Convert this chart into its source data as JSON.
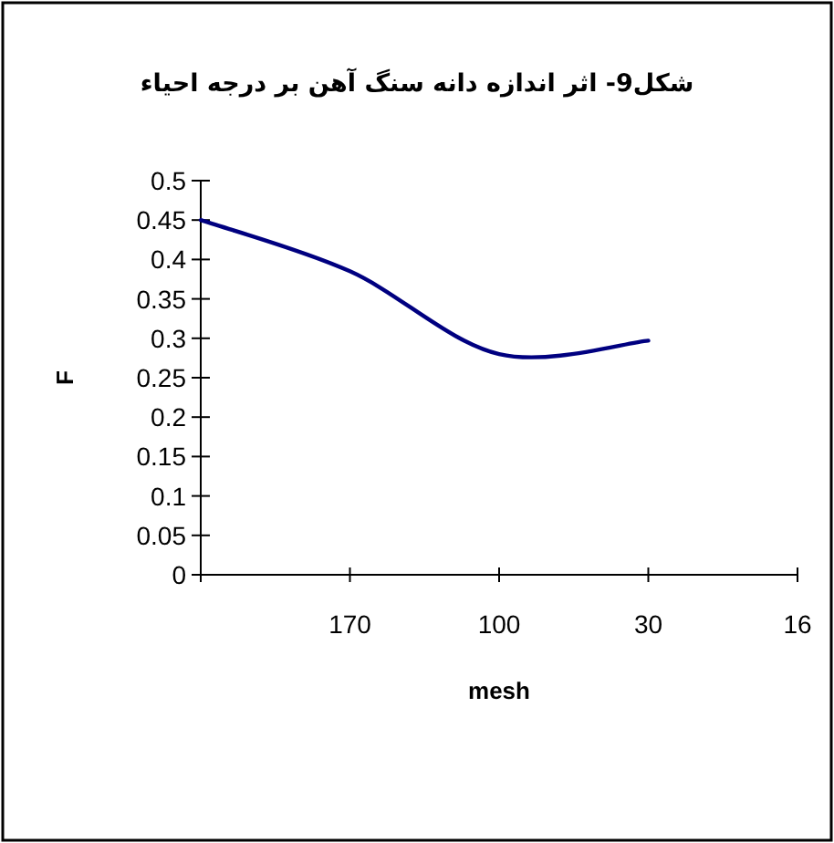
{
  "chart_data": {
    "type": "line",
    "title": "شکل9- اثر اندازه دانه سنگ آهن بر درجه احیاء",
    "xlabel": "mesh",
    "ylabel": "F",
    "categories": [
      null,
      "170",
      "100",
      "30",
      "16"
    ],
    "series": [
      {
        "color": "#000080",
        "values": [
          0.45,
          0.385,
          0.28,
          0.297,
          null
        ]
      }
    ],
    "ylim": [
      0,
      0.5
    ],
    "yticks": [
      0,
      0.05,
      0.1,
      0.15,
      0.2,
      0.25,
      0.3,
      0.35,
      0.4,
      0.45,
      0.5
    ],
    "grid": false,
    "marker": "none",
    "line_style": "solid"
  }
}
